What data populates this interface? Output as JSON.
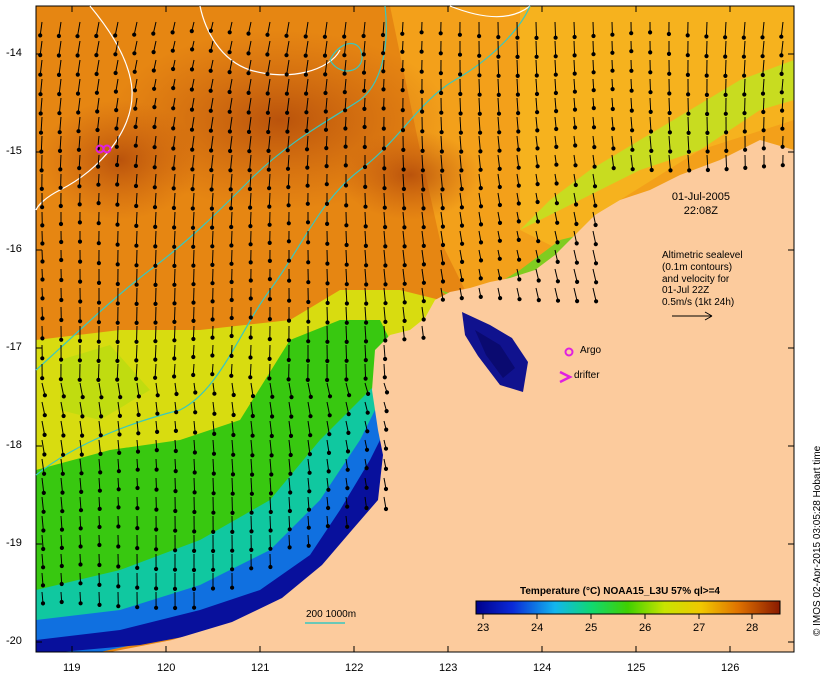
{
  "map": {
    "lat_ticks": [
      "-14",
      "-15",
      "-16",
      "-17",
      "-18",
      "-19",
      "-20"
    ],
    "lon_ticks": [
      "119",
      "120",
      "121",
      "122",
      "123",
      "124",
      "125",
      "126"
    ],
    "timestamp_date": "01-Jul-2005",
    "timestamp_time": "22:08Z",
    "altimetry_note": [
      "Altimetric sealevel",
      "(0.1m contours)",
      "and velocity for",
      "01-Jul 22Z",
      "0.5m/s (1kt 24h)"
    ],
    "markers": {
      "argo_label": "Argo",
      "drifter_label": "drifter"
    },
    "bathymetry_legend": "200  1000m",
    "side_credit": "© IMOS 02-Apr-2015 03:05:28 Hobart time",
    "colorbar": {
      "title": "Temperature (°C) NOAA15_L3U 57% ql>=4",
      "ticks": [
        "23",
        "24",
        "25",
        "26",
        "27",
        "28"
      ],
      "min": 22.6,
      "max": 28.5
    },
    "colors": {
      "land": "#fccb9d",
      "contour_white": "#ffffff",
      "bathymetry_cyan": "#38c8c0",
      "marker_magenta": "#e020e0"
    }
  }
}
